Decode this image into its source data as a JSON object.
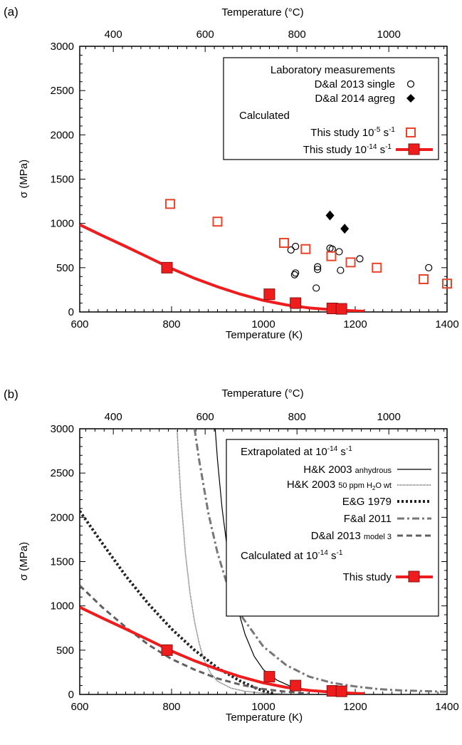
{
  "chart_data": [
    {
      "panel_label": "(a)",
      "type": "scatter",
      "xlabel": "Temperature (K)",
      "ylabel": "σ (MPa)",
      "x2label": "Temperature (°C)",
      "xlim": [
        600,
        1400
      ],
      "ylim": [
        0,
        3000
      ],
      "x_ticks": [
        "600",
        "800",
        "1000",
        "1200",
        "1400"
      ],
      "y_ticks": [
        "0",
        "500",
        "1000",
        "1500",
        "2000",
        "2500",
        "3000"
      ],
      "x2_ticks": [
        "400",
        "600",
        "800",
        "1000"
      ],
      "grid": false,
      "legend_position": "top-right",
      "legend": {
        "group1": "Laboratory measurements",
        "entry1": "D&al 2013 single",
        "entry2": "D&al 2014 agreg",
        "group2": "Calculated",
        "entry3_text": "This study 10",
        "entry3_sup": "-5",
        "entry3_unit": " s",
        "entry3_sup2": "-1",
        "entry4_text": "This study 10",
        "entry4_sup": "-14",
        "entry4_unit": " s",
        "entry4_sup2": "-1"
      },
      "series": [
        {
          "marker": "open-circle",
          "color": "#000000",
          "points": [
            [
              1060,
              700
            ],
            [
              1070,
              740
            ],
            [
              1068,
              420
            ],
            [
              1070,
              440
            ],
            [
              1115,
              270
            ],
            [
              1118,
              480
            ],
            [
              1118,
              510
            ],
            [
              1145,
              720
            ],
            [
              1150,
              710
            ],
            [
              1165,
              680
            ],
            [
              1168,
              470
            ],
            [
              1210,
              600
            ],
            [
              1360,
              500
            ]
          ]
        },
        {
          "marker": "filled-diamond",
          "color": "#000000",
          "points": [
            [
              1145,
              1090
            ],
            [
              1177,
              940
            ]
          ]
        },
        {
          "marker": "open-square",
          "color": "#e8442a",
          "points": [
            [
              797,
              1220
            ],
            [
              900,
              1020
            ],
            [
              1045,
              780
            ],
            [
              1092,
              710
            ],
            [
              1148,
              630
            ],
            [
              1190,
              560
            ],
            [
              1247,
              500
            ],
            [
              1349,
              370
            ],
            [
              1400,
              320
            ]
          ]
        },
        {
          "marker": "filled-square-line",
          "color": "#ee1c1c",
          "curve": [
            [
              600,
              985
            ],
            [
              650,
              860
            ],
            [
              700,
              740
            ],
            [
              750,
              615
            ],
            [
              800,
              490
            ],
            [
              850,
              380
            ],
            [
              900,
              285
            ],
            [
              950,
              200
            ],
            [
              1000,
              130
            ],
            [
              1050,
              80
            ],
            [
              1100,
              45
            ],
            [
              1150,
              25
            ],
            [
              1200,
              12
            ],
            [
              1220,
              8
            ]
          ],
          "points": [
            [
              790,
              500
            ],
            [
              1013,
              200
            ],
            [
              1070,
              100
            ],
            [
              1150,
              40
            ],
            [
              1170,
              35
            ]
          ]
        }
      ]
    },
    {
      "panel_label": "(b)",
      "type": "line",
      "xlabel": "Temperature (K)",
      "ylabel": "σ (MPa)",
      "x2label": "Temperature (°C)",
      "xlim": [
        600,
        1400
      ],
      "ylim": [
        0,
        3000
      ],
      "x_ticks": [
        "600",
        "800",
        "1000",
        "1200",
        "1400"
      ],
      "y_ticks": [
        "0",
        "500",
        "1000",
        "1500",
        "2000",
        "2500",
        "3000"
      ],
      "x2_ticks": [
        "400",
        "600",
        "800",
        "1000"
      ],
      "grid": false,
      "legend_position": "top-right",
      "legend": {
        "header1_text": "Extrapolated at 10",
        "header1_sup": "-14",
        "header1_unit": " s",
        "header1_sup2": "-1",
        "l1_main": "H&K 2003",
        "l1_small": "anhydrous",
        "l2_main": "H&K 2003",
        "l2_small": "50 ppm H",
        "l2_sub": "2",
        "l2_small2": "O wt",
        "l3": "E&G 1979",
        "l4": "F&al 2011",
        "l5_main": "D&al 2013",
        "l5_small": "model 3",
        "header2_text": "Calculated at 10",
        "header2_sup": "-14",
        "header2_unit": " s",
        "header2_sup2": "-1",
        "l6": "This study"
      },
      "series": [
        {
          "style": "solid-thin",
          "color": "#000000",
          "points": [
            [
              895,
              3000
            ],
            [
              900,
              2650
            ],
            [
              910,
              2100
            ],
            [
              920,
              1700
            ],
            [
              930,
              1350
            ],
            [
              940,
              1080
            ],
            [
              950,
              860
            ],
            [
              960,
              680
            ],
            [
              980,
              430
            ],
            [
              1000,
              280
            ],
            [
              1030,
              160
            ],
            [
              1060,
              90
            ],
            [
              1100,
              45
            ],
            [
              1150,
              20
            ],
            [
              1200,
              10
            ]
          ]
        },
        {
          "style": "dotted-fine",
          "color": "#555555",
          "points": [
            [
              812,
              3000
            ],
            [
              815,
              2700
            ],
            [
              820,
              2250
            ],
            [
              830,
              1600
            ],
            [
              840,
              1150
            ],
            [
              850,
              820
            ],
            [
              860,
              580
            ],
            [
              870,
              400
            ],
            [
              885,
              240
            ],
            [
              900,
              150
            ],
            [
              930,
              70
            ],
            [
              960,
              35
            ],
            [
              1000,
              15
            ],
            [
              1050,
              5
            ]
          ]
        },
        {
          "style": "dotted-heavy",
          "color": "#222222",
          "points": [
            [
              600,
              2070
            ],
            [
              650,
              1700
            ],
            [
              700,
              1340
            ],
            [
              750,
              1020
            ],
            [
              800,
              740
            ],
            [
              850,
              500
            ],
            [
              900,
              300
            ],
            [
              950,
              150
            ],
            [
              980,
              80
            ],
            [
              1000,
              40
            ],
            [
              1020,
              15
            ]
          ]
        },
        {
          "style": "dashdot",
          "color": "#777777",
          "points": [
            [
              850,
              3000
            ],
            [
              860,
              2650
            ],
            [
              880,
              2050
            ],
            [
              900,
              1600
            ],
            [
              920,
              1260
            ],
            [
              950,
              900
            ],
            [
              1000,
              540
            ],
            [
              1050,
              330
            ],
            [
              1100,
              200
            ],
            [
              1150,
              130
            ],
            [
              1200,
              90
            ],
            [
              1250,
              60
            ],
            [
              1300,
              45
            ],
            [
              1400,
              30
            ]
          ]
        },
        {
          "style": "dashed",
          "color": "#606060",
          "points": [
            [
              600,
              1230
            ],
            [
              650,
              980
            ],
            [
              700,
              760
            ],
            [
              750,
              560
            ],
            [
              800,
              400
            ],
            [
              850,
              280
            ],
            [
              900,
              180
            ],
            [
              950,
              110
            ],
            [
              1000,
              60
            ],
            [
              1050,
              30
            ],
            [
              1100,
              10
            ]
          ]
        },
        {
          "style": "thick-red-squares",
          "color": "#ee1c1c",
          "points": [
            [
              600,
              985
            ],
            [
              650,
              860
            ],
            [
              700,
              740
            ],
            [
              750,
              615
            ],
            [
              800,
              490
            ],
            [
              850,
              380
            ],
            [
              900,
              285
            ],
            [
              950,
              200
            ],
            [
              1000,
              130
            ],
            [
              1050,
              80
            ],
            [
              1100,
              45
            ],
            [
              1150,
              25
            ],
            [
              1200,
              12
            ],
            [
              1220,
              8
            ]
          ],
          "markers": [
            [
              790,
              500
            ],
            [
              1013,
              200
            ],
            [
              1070,
              100
            ],
            [
              1150,
              40
            ],
            [
              1170,
              35
            ]
          ]
        }
      ]
    }
  ]
}
